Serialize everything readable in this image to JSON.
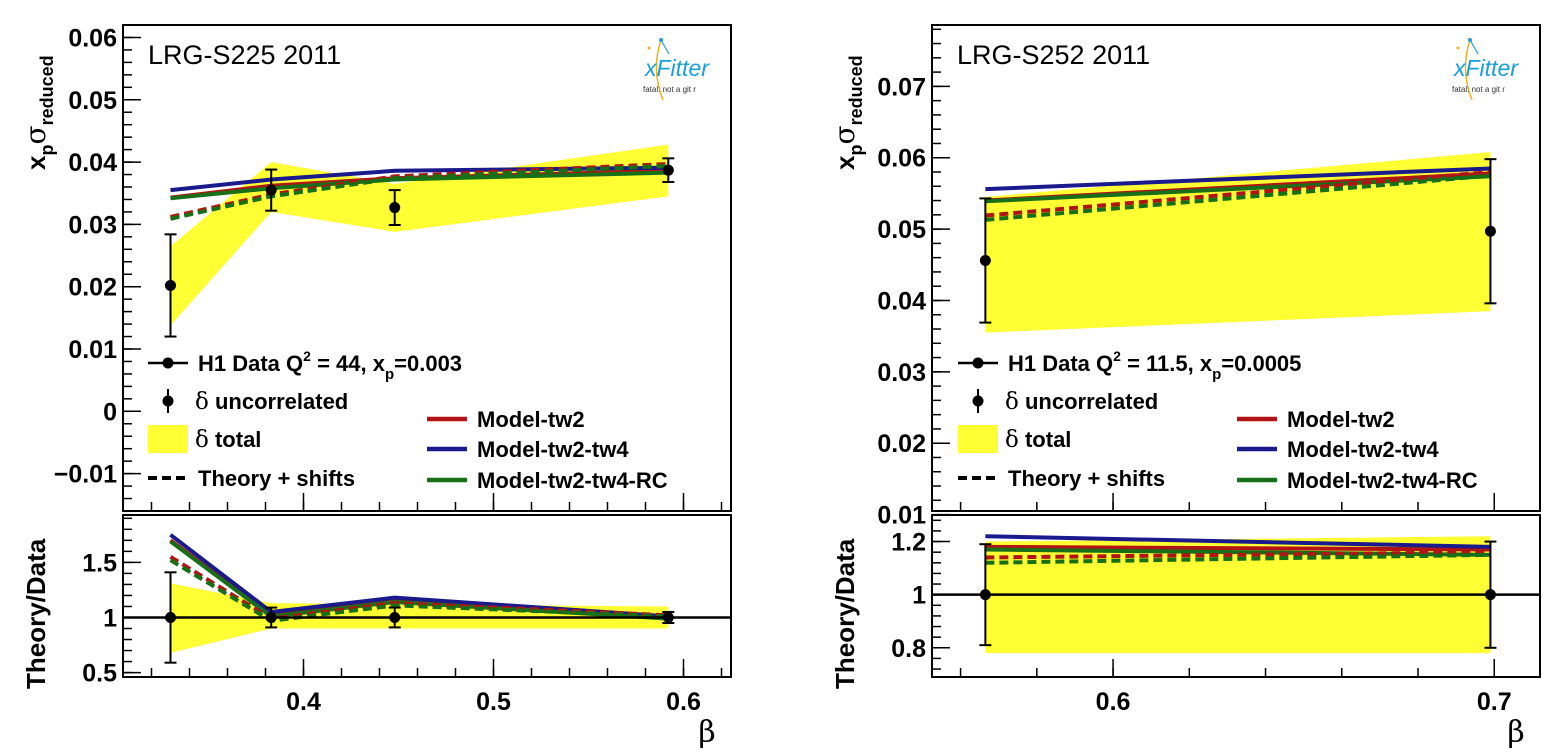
{
  "colors": {
    "band": "#ffff33",
    "data": "#000000",
    "tw2": "#b11414",
    "tw2tw4": "#1a1a8c",
    "tw2tw4rc": "#177017",
    "logo": "#1aa0d8"
  },
  "logo": {
    "text": "xFitter",
    "slogan": "fatal: not a git r",
    "icon": "xfitter-logo-icon"
  },
  "legend": {
    "uncorrelated_symbol": "δ",
    "uncorrelated_text": "uncorrelated",
    "total_symbol": "δ",
    "total_text": "total",
    "theory_shifts": "Theory + shifts",
    "tw2": "Model-tw2",
    "tw2tw4": "Model-tw2-tw4",
    "tw2tw4rc": "Model-tw2-tw4-RC"
  },
  "chart_data": [
    {
      "type": "line",
      "title": "LRG-S225 2011",
      "data_label_prefix": "H1 Data Q",
      "data_label_suffix": " = 44, x",
      "data_label_tail": "=0.003",
      "xlabel": "β",
      "ylabel": "xpσreduced",
      "ratio_ylabel": "Theory/Data",
      "xlim": [
        0.305,
        0.625
      ],
      "ylim": [
        -0.016,
        0.062
      ],
      "ratio_ylim": [
        0.46,
        1.93
      ],
      "x_ticks": [
        "0.4",
        "0.5",
        "0.6"
      ],
      "x_tick_values": [
        0.4,
        0.5,
        0.6
      ],
      "y_ticks": [
        "−0.01",
        "0",
        "0.01",
        "0.02",
        "0.03",
        "0.04",
        "0.05",
        "0.06"
      ],
      "y_tick_values": [
        -0.01,
        0,
        0.01,
        0.02,
        0.03,
        0.04,
        0.05,
        0.06
      ],
      "ratio_y_ticks": [
        "0.5",
        "1",
        "1.5"
      ],
      "ratio_y_tick_values": [
        0.5,
        1,
        1.5
      ],
      "x": [
        0.33,
        0.383,
        0.448,
        0.592
      ],
      "data_values": [
        0.0202,
        0.0355,
        0.0327,
        0.0387
      ],
      "data_errors": [
        0.0082,
        0.0033,
        0.0028,
        0.0019
      ],
      "band_low": [
        0.0138,
        0.032,
        0.0288,
        0.0345
      ],
      "band_high": [
        0.0265,
        0.04,
        0.0365,
        0.0428
      ],
      "series": [
        {
          "name": "Model-tw2",
          "key": "tw2",
          "values": [
            0.0343,
            0.0362,
            0.0374,
            0.0386
          ]
        },
        {
          "name": "Model-tw2-tw4",
          "key": "tw2tw4",
          "values": [
            0.0355,
            0.0372,
            0.0386,
            0.0391
          ]
        },
        {
          "name": "Model-tw2-tw4-RC",
          "key": "tw2tw4rc",
          "values": [
            0.0342,
            0.0358,
            0.0372,
            0.0383
          ]
        }
      ],
      "shifts": [
        {
          "key": "tw2",
          "values": [
            0.0312,
            0.0348,
            0.0377,
            0.0397
          ]
        },
        {
          "key": "tw2tw4rc",
          "values": [
            0.0309,
            0.0345,
            0.0374,
            0.0394
          ]
        }
      ],
      "ratio": {
        "data_values": [
          1.0,
          1.0,
          1.0,
          1.0
        ],
        "data_errors": [
          0.41,
          0.09,
          0.09,
          0.05
        ],
        "band_low": [
          0.68,
          0.9,
          0.9,
          0.9
        ],
        "band_high": [
          1.31,
          1.13,
          1.12,
          1.1
        ],
        "series": [
          {
            "key": "tw2",
            "values": [
              1.7,
              1.02,
              1.15,
              1.0
            ]
          },
          {
            "key": "tw2tw4",
            "values": [
              1.75,
              1.05,
              1.18,
              1.01
            ]
          },
          {
            "key": "tw2tw4rc",
            "values": [
              1.69,
              1.01,
              1.14,
              0.99
            ]
          }
        ],
        "shifts": [
          {
            "key": "tw2",
            "values": [
              1.55,
              0.99,
              1.13,
              1.02
            ]
          },
          {
            "key": "tw2tw4rc",
            "values": [
              1.52,
              0.97,
              1.11,
              1.01
            ]
          }
        ]
      }
    },
    {
      "type": "line",
      "title": "LRG-S252 2011",
      "data_label_prefix": "H1 Data Q",
      "data_label_suffix": " = 11.5, x",
      "data_label_tail": "=0.0005",
      "xlabel": "β",
      "ylabel": "xpσreduced",
      "ratio_ylabel": "Theory/Data",
      "xlim": [
        0.5525,
        0.712
      ],
      "ylim": [
        0.0105,
        0.0786
      ],
      "ratio_ylim": [
        0.69,
        1.3
      ],
      "x_ticks": [
        "0.6",
        "0.7"
      ],
      "x_tick_values": [
        0.6,
        0.7
      ],
      "y_ticks": [
        "0.01",
        "0.02",
        "0.03",
        "0.04",
        "0.05",
        "0.06",
        "0.07"
      ],
      "y_tick_values": [
        0.01,
        0.02,
        0.03,
        0.04,
        0.05,
        0.06,
        0.07
      ],
      "ratio_y_ticks": [
        "0.8",
        "1",
        "1.2"
      ],
      "ratio_y_tick_values": [
        0.8,
        1,
        1.2
      ],
      "x": [
        0.5665,
        0.699
      ],
      "data_values": [
        0.0456,
        0.0497
      ],
      "data_errors": [
        0.0087,
        0.0101
      ],
      "band_low": [
        0.0355,
        0.0385
      ],
      "band_high": [
        0.0545,
        0.0608
      ],
      "series": [
        {
          "name": "Model-tw2",
          "key": "tw2",
          "values": [
            0.054,
            0.0578
          ]
        },
        {
          "name": "Model-tw2-tw4",
          "key": "tw2tw4",
          "values": [
            0.0556,
            0.0585
          ]
        },
        {
          "name": "Model-tw2-tw4-RC",
          "key": "tw2tw4rc",
          "values": [
            0.0539,
            0.0574
          ]
        }
      ],
      "shifts": [
        {
          "key": "tw2",
          "values": [
            0.0519,
            0.058
          ]
        },
        {
          "key": "tw2tw4rc",
          "values": [
            0.0513,
            0.0575
          ]
        }
      ],
      "ratio": {
        "data_values": [
          1.0,
          1.0
        ],
        "data_errors": [
          0.19,
          0.2
        ],
        "band_low": [
          0.78,
          0.78
        ],
        "band_high": [
          1.2,
          1.22
        ],
        "series": [
          {
            "key": "tw2",
            "values": [
              1.18,
              1.17
            ]
          },
          {
            "key": "tw2tw4",
            "values": [
              1.22,
              1.18
            ]
          },
          {
            "key": "tw2tw4rc",
            "values": [
              1.17,
              1.15
            ]
          }
        ],
        "shifts": [
          {
            "key": "tw2",
            "values": [
              1.14,
              1.16
            ]
          },
          {
            "key": "tw2tw4rc",
            "values": [
              1.12,
              1.15
            ]
          }
        ]
      }
    }
  ]
}
